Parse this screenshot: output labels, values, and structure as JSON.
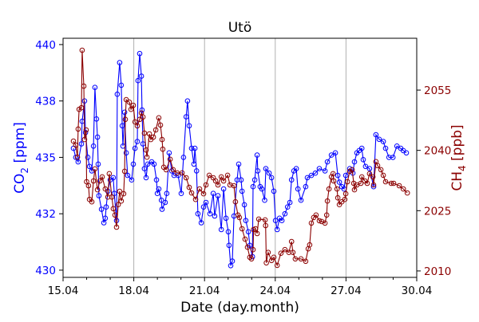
{
  "chart_data": {
    "type": "line",
    "title": "Utö",
    "xlabel": "Date (day.month)",
    "ylabel_left": {
      "main": "CO",
      "sub": "2",
      "rest": " [ppm]"
    },
    "ylabel_right": {
      "main": "CH",
      "sub": "4",
      "rest": " [ppb]"
    },
    "xlim": [
      15.0,
      30.0
    ],
    "ylim_left": [
      429.68,
      440.28
    ],
    "ylim_right": [
      2008.4,
      2067.9
    ],
    "grid": "vertical lines at major x ticks",
    "colors": {
      "co2": "#0000ff",
      "ch4": "#8b0000",
      "grid": "#b0b0b0"
    },
    "x_ticks": [
      {
        "value": 15,
        "label": "15.04"
      },
      {
        "value": 18,
        "label": "18.04"
      },
      {
        "value": 21,
        "label": "21.04"
      },
      {
        "value": 24,
        "label": "24.04"
      },
      {
        "value": 27,
        "label": "27.04"
      },
      {
        "value": 30,
        "label": "30.04"
      }
    ],
    "x_minor_ticks": [
      16,
      17,
      19,
      20,
      22,
      23,
      25,
      26,
      28,
      29
    ],
    "y_left_ticks": [
      {
        "value": 430,
        "label": "430"
      },
      {
        "value": 432.5,
        "label": "432"
      },
      {
        "value": 435,
        "label": "435"
      },
      {
        "value": 437.5,
        "label": "438"
      },
      {
        "value": 440,
        "label": "440"
      }
    ],
    "y_right_ticks": [
      {
        "value": 2010,
        "label": "2010"
      },
      {
        "value": 2025,
        "label": "2025"
      },
      {
        "value": 2040,
        "label": "2040"
      },
      {
        "value": 2055,
        "label": "2055"
      }
    ],
    "series": [
      {
        "name": "CO2",
        "axis": "left",
        "color": "#0000ff",
        "x": [
          15.44,
          15.54,
          15.64,
          15.78,
          15.81,
          15.91,
          15.95,
          16.05,
          16.12,
          16.22,
          16.29,
          16.35,
          16.42,
          16.46,
          16.49,
          16.52,
          16.63,
          16.73,
          16.79,
          16.83,
          16.9,
          17.0,
          17.13,
          17.17,
          17.27,
          17.3,
          17.4,
          17.47,
          17.51,
          17.54,
          17.61,
          17.68,
          17.74,
          17.91,
          17.98,
          18.05,
          18.15,
          18.18,
          18.25,
          18.32,
          18.35,
          18.39,
          18.45,
          18.52,
          18.59,
          18.76,
          18.86,
          18.96,
          19.0,
          19.06,
          19.17,
          19.2,
          19.33,
          19.4,
          19.5,
          19.61,
          19.71,
          19.88,
          20.01,
          20.11,
          20.22,
          20.28,
          20.35,
          20.45,
          20.55,
          20.59,
          20.66,
          20.72,
          20.86,
          20.96,
          21.06,
          21.23,
          21.37,
          21.43,
          21.57,
          21.71,
          21.81,
          21.91,
          22.01,
          22.04,
          22.11,
          22.18,
          22.25,
          22.38,
          22.45,
          22.55,
          22.59,
          22.69,
          22.75,
          22.86,
          22.92,
          23.03,
          23.06,
          23.13,
          23.23,
          23.26,
          23.36,
          23.43,
          23.55,
          23.6,
          23.74,
          23.84,
          23.94,
          24.01,
          24.08,
          24.18,
          24.28,
          24.41,
          24.52,
          24.62,
          24.69,
          24.79,
          24.89,
          24.96,
          25.09,
          25.29,
          25.36,
          25.53,
          25.7,
          25.87,
          26.11,
          26.21,
          26.38,
          26.55,
          26.65,
          26.72,
          26.82,
          26.92,
          26.99,
          27.16,
          27.29,
          27.36,
          27.46,
          27.56,
          27.67,
          27.73,
          27.83,
          28.0,
          28.17,
          28.27,
          28.41,
          28.58,
          28.68,
          28.82,
          28.99,
          29.16,
          29.32,
          29.43,
          29.56
        ],
        "y": [
          435.4,
          435.0,
          434.8,
          435.6,
          436.6,
          437.5,
          436.1,
          435.0,
          434.6,
          434.4,
          435.5,
          438.1,
          436.7,
          435.9,
          434.7,
          433.3,
          432.7,
          432.1,
          432.3,
          432.8,
          433.5,
          434.0,
          434.1,
          433.4,
          432.2,
          437.8,
          439.2,
          438.2,
          436.4,
          435.5,
          437.0,
          435.2,
          434.2,
          434.0,
          434.7,
          435.4,
          435.7,
          438.4,
          439.6,
          438.6,
          437.1,
          435.6,
          434.5,
          434.1,
          434.7,
          434.8,
          434.7,
          434.0,
          433.4,
          433.6,
          433.1,
          432.7,
          433.0,
          433.4,
          435.2,
          434.4,
          434.2,
          434.2,
          433.4,
          435.0,
          436.8,
          437.5,
          436.4,
          435.4,
          434.7,
          435.4,
          434.4,
          432.5,
          432.1,
          432.8,
          433.0,
          432.5,
          433.4,
          432.4,
          433.3,
          431.8,
          433.6,
          432.3,
          431.7,
          431.1,
          430.2,
          430.4,
          432.4,
          434.0,
          434.7,
          434.0,
          433.5,
          432.9,
          432.2,
          431.7,
          431.1,
          430.6,
          433.7,
          434.0,
          435.1,
          434.4,
          433.7,
          433.6,
          433.1,
          434.5,
          434.3,
          434.1,
          433.5,
          432.2,
          431.8,
          432.3,
          432.2,
          432.5,
          432.8,
          433.0,
          434.0,
          434.4,
          434.5,
          433.6,
          433.1,
          433.7,
          434.1,
          434.2,
          434.3,
          434.5,
          434.4,
          434.8,
          435.1,
          435.2,
          434.2,
          433.9,
          433.7,
          433.6,
          434.2,
          434.5,
          434.3,
          434.8,
          435.2,
          435.3,
          435.4,
          434.9,
          434.6,
          434.5,
          433.7,
          436.0,
          435.8,
          435.7,
          435.4,
          435.0,
          435.0,
          435.5,
          435.4,
          435.3,
          435.2
        ]
      },
      {
        "name": "CH4",
        "axis": "right",
        "color": "#8b0000",
        "x": [
          15.44,
          15.54,
          15.61,
          15.64,
          15.68,
          15.78,
          15.81,
          15.88,
          15.91,
          15.98,
          16.0,
          16.08,
          16.12,
          16.22,
          16.29,
          16.35,
          16.46,
          16.56,
          16.66,
          16.79,
          16.9,
          16.96,
          17.07,
          17.13,
          17.2,
          17.27,
          17.34,
          17.4,
          17.47,
          17.57,
          17.61,
          17.64,
          17.68,
          17.81,
          17.88,
          17.98,
          18.05,
          18.15,
          18.25,
          18.32,
          18.39,
          18.45,
          18.52,
          18.56,
          18.66,
          18.72,
          18.83,
          18.93,
          19.06,
          19.13,
          19.2,
          19.23,
          19.27,
          19.37,
          19.54,
          19.67,
          19.84,
          20.05,
          20.22,
          20.35,
          20.45,
          20.62,
          20.79,
          20.96,
          21.06,
          21.2,
          21.37,
          21.47,
          21.57,
          21.71,
          21.81,
          21.98,
          22.08,
          22.25,
          22.31,
          22.42,
          22.48,
          22.59,
          22.72,
          22.82,
          22.92,
          22.99,
          23.06,
          23.08,
          23.16,
          23.23,
          23.3,
          23.57,
          23.59,
          23.62,
          23.7,
          23.84,
          23.94,
          24.08,
          24.24,
          24.41,
          24.58,
          24.69,
          24.75,
          24.85,
          25.09,
          25.29,
          25.4,
          25.46,
          25.53,
          25.63,
          25.73,
          25.87,
          25.97,
          26.11,
          26.18,
          26.21,
          26.28,
          26.38,
          26.45,
          26.48,
          26.62,
          26.65,
          26.72,
          26.82,
          26.95,
          26.99,
          27.06,
          27.16,
          27.26,
          27.33,
          27.36,
          27.46,
          27.63,
          27.67,
          27.8,
          27.9,
          28.0,
          28.14,
          28.17,
          28.27,
          28.34,
          28.48,
          28.58,
          28.68,
          28.92,
          29.02,
          29.26,
          29.43,
          29.6
        ],
        "y": [
          2042.3,
          2041.3,
          2038.3,
          2045.3,
          2050.2,
          2050.6,
          2064.9,
          2056.0,
          2042.7,
          2045.1,
          2032.2,
          2031.2,
          2027.8,
          2027.2,
          2032.4,
          2035.4,
          2030.2,
          2032.4,
          2033.4,
          2030.4,
          2028.4,
          2034.2,
          2028.4,
          2025.5,
          2023.9,
          2020.9,
          2026.5,
          2029.8,
          2027.4,
          2029.2,
          2034.8,
          2047.7,
          2052.6,
          2052.0,
          2050.2,
          2051.2,
          2047.1,
          2046.1,
          2047.7,
          2049.3,
          2048.3,
          2044.3,
          2040.1,
          2038.3,
          2044.1,
          2042.7,
          2043.3,
          2045.1,
          2048.1,
          2046.3,
          2042.7,
          2040.3,
          2035.8,
          2035.2,
          2037.8,
          2035.2,
          2034.4,
          2034.4,
          2033.2,
          2030.8,
          2029.4,
          2027.8,
          2030.4,
          2029.2,
          2031.4,
          2033.8,
          2033.2,
          2032.4,
          2031.4,
          2033.4,
          2032.4,
          2033.8,
          2031.4,
          2031.2,
          2027.2,
          2023.9,
          2023.3,
          2020.5,
          2017.9,
          2015.9,
          2013.4,
          2013.0,
          2015.3,
          2020.3,
          2020.5,
          2019.3,
          2022.9,
          2022.7,
          2021.3,
          2012.0,
          2014.6,
          2012.6,
          2013.4,
          2011.4,
          2014.4,
          2015.3,
          2014.6,
          2017.3,
          2014.6,
          2013.0,
          2013.0,
          2012.4,
          2015.5,
          2016.5,
          2021.9,
          2023.3,
          2023.9,
          2022.5,
          2022.3,
          2021.9,
          2023.9,
          2027.4,
          2030.4,
          2033.4,
          2034.2,
          2032.4,
          2030.4,
          2028.2,
          2026.5,
          2027.2,
          2027.8,
          2029.2,
          2032.2,
          2034.8,
          2035.2,
          2031.8,
          2030.2,
          2031.4,
          2031.8,
          2033.4,
          2032.4,
          2031.8,
          2034.2,
          2033.4,
          2031.4,
          2037.2,
          2036.2,
          2035.2,
          2033.8,
          2032.2,
          2031.8,
          2031.8,
          2031.2,
          2030.4,
          2029.4
        ]
      }
    ]
  }
}
